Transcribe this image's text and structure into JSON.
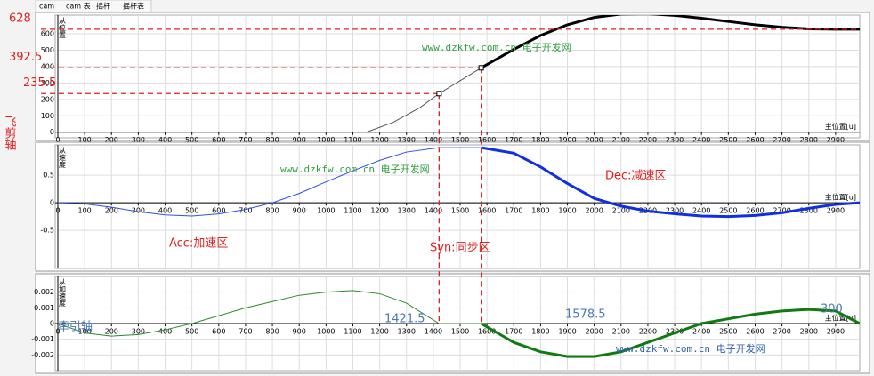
{
  "tabs": [
    "cam",
    "cam 表",
    "摇杆",
    "摇杆表"
  ],
  "chart_data": [
    {
      "type": "line",
      "y_label": "从位置",
      "x_label": "主位置[u]",
      "xlim": [
        0,
        2990
      ],
      "xticks": [
        0,
        100,
        200,
        300,
        400,
        500,
        600,
        700,
        800,
        900,
        1000,
        1100,
        1200,
        1300,
        1400,
        1500,
        1600,
        1700,
        1800,
        1900,
        2000,
        2100,
        2200,
        2300,
        2400,
        2500,
        2600,
        2700,
        2800,
        2900
      ],
      "ylim": [
        -34,
        714
      ],
      "yticks": [
        0,
        100,
        200,
        300,
        400,
        500,
        600
      ],
      "grid": true,
      "hlines": [
        628,
        392.5,
        235.5
      ],
      "series": [
        {
          "color": "#555555",
          "line_width": 1,
          "x": [
            1150,
            1250,
            1350,
            1421.5,
            1500,
            1578.5
          ],
          "values": [
            0,
            60,
            150,
            235.5,
            314,
            392.5
          ]
        },
        {
          "color": "#000000",
          "line_width": 3,
          "x": [
            1578.5,
            1700,
            1800,
            1900,
            2000,
            2100,
            2200,
            2300,
            2400,
            2500,
            2600,
            2700,
            2800,
            2900,
            2990
          ],
          "values": [
            392.5,
            505,
            590,
            655,
            700,
            720,
            722,
            712,
            695,
            675,
            655,
            640,
            630,
            628,
            628
          ]
        }
      ]
    },
    {
      "type": "line",
      "y_label": "从速度",
      "x_label": "主位置[u]",
      "xlim": [
        0,
        2990
      ],
      "xticks": [
        0,
        100,
        200,
        300,
        400,
        500,
        600,
        700,
        800,
        900,
        1000,
        1100,
        1200,
        1300,
        1400,
        1500,
        1600,
        1700,
        1800,
        1900,
        2000,
        2100,
        2200,
        2300,
        2400,
        2500,
        2600,
        2700,
        2800,
        2900
      ],
      "ylim": [
        -1.19,
        1.05
      ],
      "yticks": [
        -0.5,
        0,
        0.5
      ],
      "grid": true,
      "series": [
        {
          "color": "#3050e0",
          "line_width": 1,
          "x": [
            0,
            100,
            200,
            300,
            400,
            500,
            600,
            700,
            800,
            900,
            1000,
            1100,
            1200,
            1300,
            1421.5,
            1578.5
          ],
          "values": [
            0,
            -0.02,
            -0.08,
            -0.16,
            -0.22,
            -0.24,
            -0.2,
            -0.12,
            0,
            0.17,
            0.38,
            0.58,
            0.77,
            0.92,
            1,
            1
          ]
        },
        {
          "color": "#1030e0",
          "line_width": 3,
          "x": [
            1578.5,
            1700,
            1800,
            1900,
            2000,
            2100,
            2200,
            2300,
            2400,
            2500,
            2600,
            2700,
            2800,
            2900,
            2990
          ],
          "values": [
            1,
            0.9,
            0.65,
            0.35,
            0.08,
            -0.06,
            -0.15,
            -0.2,
            -0.24,
            -0.25,
            -0.23,
            -0.18,
            -0.1,
            -0.03,
            0
          ]
        }
      ]
    },
    {
      "type": "line",
      "y_label": "从加速度",
      "x_label": "主位置[u]",
      "xlim": [
        0,
        2990
      ],
      "xticks": [
        0,
        100,
        200,
        300,
        400,
        500,
        600,
        700,
        800,
        900,
        1000,
        1100,
        1200,
        1300,
        1400,
        1500,
        1600,
        1700,
        1800,
        1900,
        2000,
        2100,
        2200,
        2300,
        2400,
        2500,
        2600,
        2700,
        2800,
        2900
      ],
      "ylim": [
        -0.003,
        0.003
      ],
      "yticks": [
        -0.002,
        -0.001,
        0,
        0.001,
        0.002
      ],
      "grid": true,
      "vlines": [
        1421.5,
        1578.5
      ],
      "series": [
        {
          "color": "#2a8a2a",
          "line_width": 1,
          "x": [
            0,
            100,
            200,
            300,
            400,
            500,
            600,
            700,
            800,
            900,
            1000,
            1100,
            1200,
            1300,
            1421.5,
            1578.5
          ],
          "values": [
            0,
            -0.0006,
            -0.0008,
            -0.0007,
            -0.0004,
            0,
            0.0005,
            0.001,
            0.0014,
            0.0018,
            0.002,
            0.0021,
            0.0019,
            0.0013,
            0,
            0
          ]
        },
        {
          "color": "#107a10",
          "line_width": 3,
          "x": [
            1578.5,
            1700,
            1800,
            1900,
            2000,
            2100,
            2200,
            2300,
            2400,
            2500,
            2600,
            2700,
            2800,
            2900,
            2990
          ],
          "values": [
            0,
            -0.0012,
            -0.0018,
            -0.0021,
            -0.0021,
            -0.0018,
            -0.0012,
            -0.0006,
            0,
            0.0003,
            0.0006,
            0.0008,
            0.0009,
            0.0008,
            0
          ]
        }
      ]
    }
  ],
  "annotations": [
    {
      "text": "飞剪轴",
      "color": "#e02020"
    },
    {
      "text": "Acc:加速区",
      "color": "#e02020"
    },
    {
      "text": "Syn:同步区",
      "color": "#e02020"
    },
    {
      "text": "Dec:减速区",
      "color": "#e02020"
    },
    {
      "text": "牵引轴",
      "color": "#4a78b8"
    },
    {
      "text": "300",
      "color": "#4a78b8"
    },
    {
      "text": "www.dzkfw.com.cn 电子开发网",
      "color": "#30a040"
    },
    {
      "text": "www.dzkfw.com.cn 电子开发网",
      "color": "#30a040"
    },
    {
      "text": "www.dzkfw.com.cn 电子开发网",
      "color": "#3060b0"
    }
  ]
}
